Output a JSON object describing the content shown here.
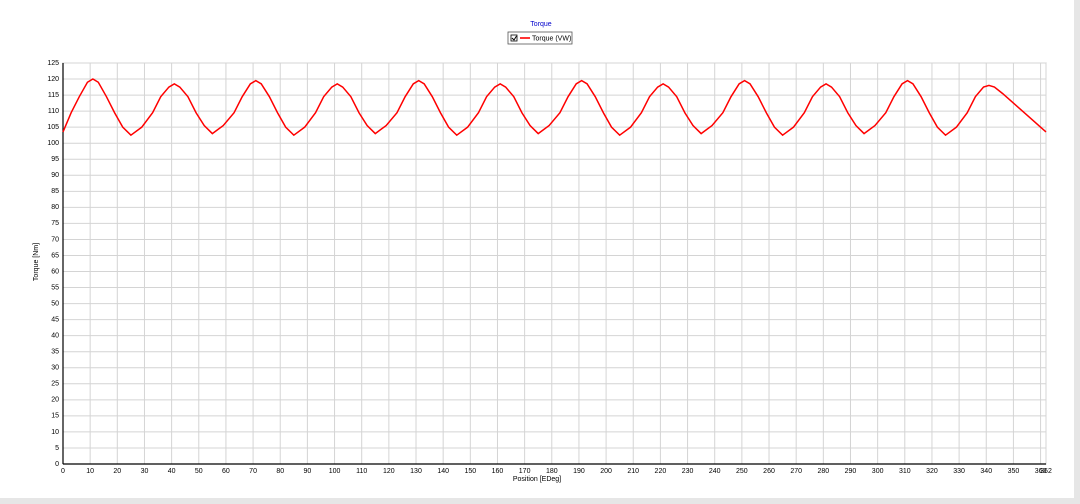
{
  "chart_data": {
    "type": "line",
    "title": "Torque",
    "x_label": "Position [EDeg]",
    "y_label": "Torque [Nm]",
    "x": [
      0,
      3,
      6,
      9,
      11,
      13,
      16,
      19,
      22,
      25,
      29,
      33,
      36,
      39,
      41,
      43,
      46,
      49,
      52,
      55,
      59,
      63,
      66,
      69,
      71,
      73,
      76,
      79,
      82,
      85,
      89,
      93,
      96,
      99,
      101,
      103,
      106,
      109,
      112,
      115,
      119,
      123,
      126,
      129,
      131,
      133,
      136,
      139,
      142,
      145,
      149,
      153,
      156,
      159,
      161,
      163,
      166,
      169,
      172,
      175,
      179,
      183,
      186,
      189,
      191,
      193,
      196,
      199,
      202,
      205,
      209,
      213,
      216,
      219,
      221,
      223,
      226,
      229,
      232,
      235,
      239,
      243,
      246,
      249,
      251,
      253,
      256,
      259,
      262,
      265,
      269,
      273,
      276,
      279,
      281,
      283,
      286,
      289,
      292,
      295,
      299,
      303,
      306,
      309,
      311,
      313,
      316,
      319,
      322,
      325,
      329,
      333,
      336,
      339,
      341,
      343,
      346,
      350,
      354,
      358,
      362
    ],
    "series": [
      {
        "name": "Torque (VW)",
        "color": "#ff0000",
        "values": [
          103.5,
          109.5,
          114.5,
          119,
          120,
          119,
          114.5,
          109.5,
          105,
          102.5,
          105,
          109.5,
          114.5,
          117.5,
          118.5,
          117.5,
          114.5,
          109.5,
          105.5,
          103,
          105.5,
          109.5,
          114.5,
          118.5,
          119.5,
          118.5,
          114.5,
          109.5,
          105,
          102.5,
          105,
          109.5,
          114.5,
          117.5,
          118.5,
          117.5,
          114.5,
          109.5,
          105.5,
          103,
          105.5,
          109.5,
          114.5,
          118.5,
          119.5,
          118.5,
          114.5,
          109.5,
          105,
          102.5,
          105,
          109.5,
          114.5,
          117.5,
          118.5,
          117.5,
          114.5,
          109.5,
          105.5,
          103,
          105.5,
          109.5,
          114.5,
          118.5,
          119.5,
          118.5,
          114.5,
          109.5,
          105,
          102.5,
          105,
          109.5,
          114.5,
          117.5,
          118.5,
          117.5,
          114.5,
          109.5,
          105.5,
          103,
          105.5,
          109.5,
          114.5,
          118.5,
          119.5,
          118.5,
          114.5,
          109.5,
          105,
          102.5,
          105,
          109.5,
          114.5,
          117.5,
          118.5,
          117.5,
          114.5,
          109.5,
          105.5,
          103,
          105.5,
          109.5,
          114.5,
          118.5,
          119.5,
          118.5,
          114.5,
          109.5,
          105,
          102.5,
          105,
          109.5,
          114.5,
          117.5,
          118,
          117.5,
          115.5,
          112.5,
          109.5,
          106.5,
          103.5
        ]
      }
    ],
    "xlim": [
      0,
      362
    ],
    "ylim": [
      0,
      125
    ],
    "xticks": [
      0,
      10,
      20,
      30,
      40,
      50,
      60,
      70,
      80,
      90,
      100,
      110,
      120,
      130,
      140,
      150,
      160,
      170,
      180,
      190,
      200,
      210,
      220,
      230,
      240,
      250,
      260,
      270,
      280,
      290,
      300,
      310,
      320,
      330,
      340,
      350,
      360,
      362
    ],
    "yticks": [
      0,
      5,
      10,
      15,
      20,
      25,
      30,
      35,
      40,
      45,
      50,
      55,
      60,
      65,
      70,
      75,
      80,
      85,
      90,
      95,
      100,
      105,
      110,
      115,
      120,
      125
    ],
    "grid": true,
    "legend": "top"
  }
}
